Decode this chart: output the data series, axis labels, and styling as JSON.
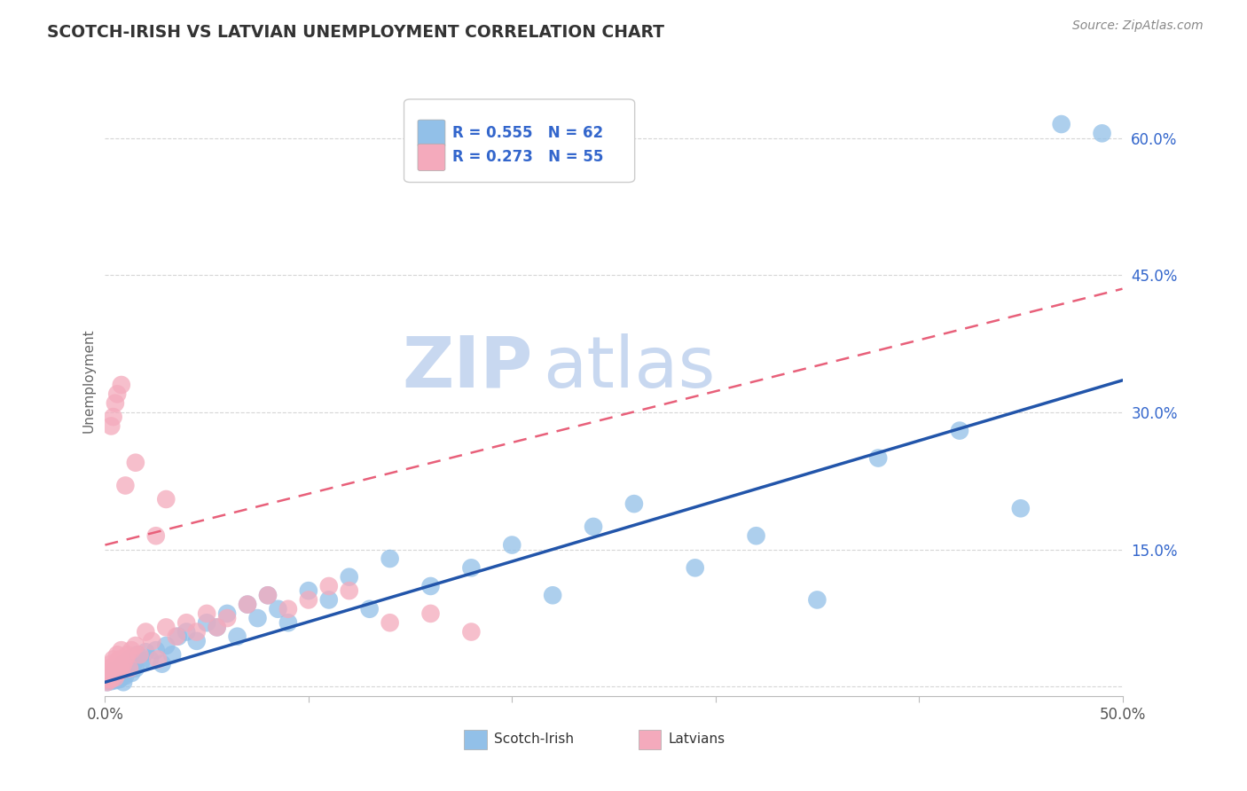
{
  "title": "SCOTCH-IRISH VS LATVIAN UNEMPLOYMENT CORRELATION CHART",
  "source": "Source: ZipAtlas.com",
  "ylabel": "Unemployment",
  "y_ticks": [
    0.0,
    0.15,
    0.3,
    0.45,
    0.6
  ],
  "y_tick_labels": [
    "",
    "15.0%",
    "30.0%",
    "45.0%",
    "60.0%"
  ],
  "x_range": [
    0.0,
    0.5
  ],
  "y_range": [
    -0.01,
    0.68
  ],
  "scotch_irish_R": 0.555,
  "scotch_irish_N": 62,
  "latvian_R": 0.273,
  "latvian_N": 55,
  "blue_color": "#92C0E8",
  "pink_color": "#F4AABC",
  "blue_line_color": "#2255AA",
  "pink_line_color": "#E8607A",
  "title_color": "#333333",
  "watermark_color_zip": "#C8D8F0",
  "watermark_color_atlas": "#C8D8F0",
  "legend_color": "#3366CC",
  "blue_line_start_y": 0.005,
  "blue_line_end_y": 0.335,
  "pink_line_start_y": 0.155,
  "pink_line_end_y": 0.435,
  "scotch_irish_x": [
    0.001,
    0.002,
    0.002,
    0.003,
    0.003,
    0.004,
    0.004,
    0.005,
    0.005,
    0.006,
    0.006,
    0.007,
    0.007,
    0.008,
    0.008,
    0.009,
    0.009,
    0.01,
    0.011,
    0.012,
    0.013,
    0.014,
    0.015,
    0.016,
    0.018,
    0.02,
    0.022,
    0.025,
    0.028,
    0.03,
    0.033,
    0.036,
    0.04,
    0.045,
    0.05,
    0.055,
    0.06,
    0.065,
    0.07,
    0.075,
    0.08,
    0.085,
    0.09,
    0.1,
    0.11,
    0.12,
    0.13,
    0.14,
    0.16,
    0.18,
    0.2,
    0.22,
    0.24,
    0.26,
    0.29,
    0.32,
    0.35,
    0.38,
    0.42,
    0.45,
    0.47,
    0.49
  ],
  "scotch_irish_y": [
    0.005,
    0.008,
    0.01,
    0.006,
    0.012,
    0.008,
    0.015,
    0.007,
    0.018,
    0.01,
    0.012,
    0.008,
    0.02,
    0.01,
    0.015,
    0.005,
    0.025,
    0.012,
    0.018,
    0.03,
    0.015,
    0.025,
    0.02,
    0.035,
    0.028,
    0.038,
    0.03,
    0.04,
    0.025,
    0.045,
    0.035,
    0.055,
    0.06,
    0.05,
    0.07,
    0.065,
    0.08,
    0.055,
    0.09,
    0.075,
    0.1,
    0.085,
    0.07,
    0.105,
    0.095,
    0.12,
    0.085,
    0.14,
    0.11,
    0.13,
    0.155,
    0.1,
    0.175,
    0.2,
    0.13,
    0.165,
    0.095,
    0.25,
    0.28,
    0.195,
    0.615,
    0.605
  ],
  "latvian_x": [
    0.001,
    0.001,
    0.001,
    0.002,
    0.002,
    0.002,
    0.003,
    0.003,
    0.003,
    0.004,
    0.004,
    0.004,
    0.005,
    0.005,
    0.006,
    0.006,
    0.007,
    0.007,
    0.008,
    0.008,
    0.009,
    0.01,
    0.011,
    0.012,
    0.013,
    0.015,
    0.017,
    0.02,
    0.023,
    0.026,
    0.03,
    0.035,
    0.04,
    0.045,
    0.05,
    0.055,
    0.06,
    0.07,
    0.08,
    0.09,
    0.1,
    0.11,
    0.12,
    0.14,
    0.16,
    0.18,
    0.03,
    0.025,
    0.015,
    0.01,
    0.008,
    0.006,
    0.005,
    0.004,
    0.003
  ],
  "latvian_y": [
    0.005,
    0.008,
    0.012,
    0.01,
    0.015,
    0.02,
    0.008,
    0.018,
    0.025,
    0.012,
    0.02,
    0.03,
    0.01,
    0.025,
    0.015,
    0.035,
    0.02,
    0.03,
    0.018,
    0.04,
    0.025,
    0.03,
    0.035,
    0.02,
    0.04,
    0.045,
    0.035,
    0.06,
    0.05,
    0.03,
    0.065,
    0.055,
    0.07,
    0.06,
    0.08,
    0.065,
    0.075,
    0.09,
    0.1,
    0.085,
    0.095,
    0.11,
    0.105,
    0.07,
    0.08,
    0.06,
    0.205,
    0.165,
    0.245,
    0.22,
    0.33,
    0.32,
    0.31,
    0.295,
    0.285
  ]
}
